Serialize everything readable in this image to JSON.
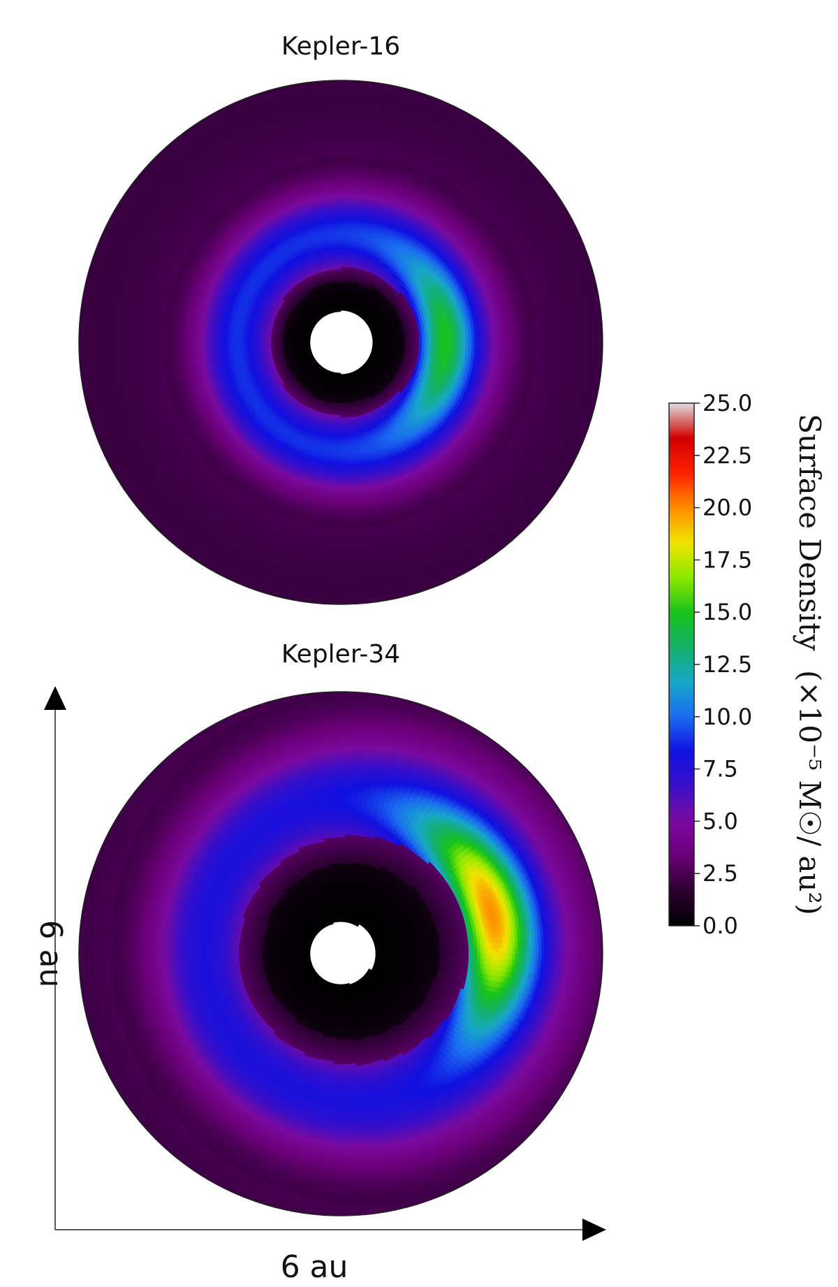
{
  "chart_data": [
    {
      "type": "heatmap",
      "title": "Kepler-16",
      "description_map": "polar surface density map",
      "field": {
        "hole_radius": 0.35,
        "inner_cavity_radius": 0.7,
        "cavity_edge_radius": 0.85,
        "ring_center_radius": 1.25,
        "ring_half_width": 0.55,
        "outer_radius": 3.0,
        "ring_peak_value": 7.5,
        "crescent_peak_value": 14.0,
        "crescent_direction_deg": 0,
        "crescent_extent_deg": 70,
        "background_value": 2.0,
        "eccentricity": 0.05
      }
    },
    {
      "type": "heatmap",
      "title": "Kepler-34",
      "field": {
        "hole_radius": 0.35,
        "inner_cavity_radius": 1.0,
        "cavity_edge_radius": 1.3,
        "ring_center_radius": 1.75,
        "ring_half_width": 0.75,
        "outer_radius": 3.0,
        "ring_peak_value": 6.5,
        "crescent_peak_value": 19.0,
        "crescent_direction_deg": 15,
        "crescent_extent_deg": 60,
        "background_value": 2.0,
        "eccentricity": 0.12
      }
    }
  ],
  "colorbar": {
    "label_main": "Surface Density",
    "label_units": "(×10⁻⁵ M☉/ au²)",
    "min": 0.0,
    "max": 25.0,
    "ticks": [
      "0.0",
      "2.5",
      "5.0",
      "7.5",
      "10.0",
      "12.5",
      "15.0",
      "17.5",
      "20.0",
      "22.5",
      "25.0"
    ],
    "colormap": [
      "#000000",
      "#2a0030",
      "#6a0078",
      "#7a0a9e",
      "#3a0fc8",
      "#1010e0",
      "#1a6cf0",
      "#18a8c8",
      "#14b06a",
      "#18c418",
      "#8ee800",
      "#f0e400",
      "#ff8c00",
      "#ff2000",
      "#d00000",
      "#e0e0e0"
    ]
  },
  "scale_bar": {
    "x_label": "6 au",
    "y_label": "6 au"
  }
}
